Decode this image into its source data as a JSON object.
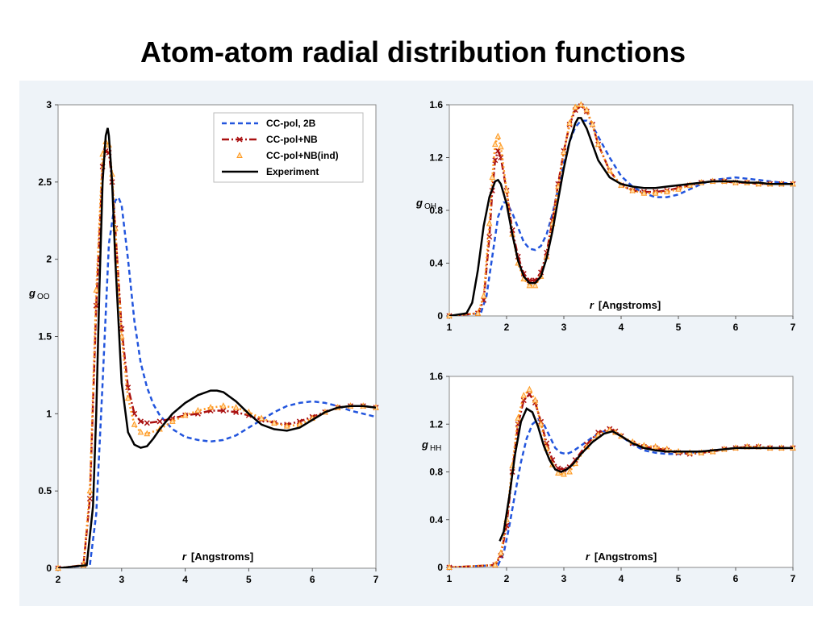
{
  "slide": {
    "title": "Atom-atom radial distribution functions"
  },
  "chart_data": [
    {
      "id": "goo",
      "type": "line",
      "ylabel_main": "g",
      "ylabel_sub": "OO",
      "xlabel_var": "r",
      "xlabel_units": "[Angstroms]",
      "xlim": [
        2,
        7
      ],
      "ylim": [
        0,
        3
      ],
      "xticks": [
        2,
        3,
        4,
        5,
        6,
        7
      ],
      "yticks": [
        0,
        0.5,
        1,
        1.5,
        2,
        2.5,
        3
      ],
      "ytick_labels": [
        "0",
        "0.5",
        "1",
        "1.5",
        "2",
        "2.5",
        "3"
      ],
      "grid": false,
      "legend": {
        "position": "top-right",
        "entries": [
          "CC-pol, 2B",
          "CC-pol+NB",
          "CC-pol+NB(ind)",
          "Experiment"
        ]
      },
      "series": [
        {
          "name": "CC-pol, 2B",
          "color": "#2255dd",
          "style": "dash",
          "x": [
            2.0,
            2.5,
            2.6,
            2.7,
            2.8,
            2.9,
            2.95,
            3.0,
            3.1,
            3.2,
            3.3,
            3.4,
            3.5,
            3.6,
            3.8,
            4.0,
            4.2,
            4.4,
            4.6,
            4.8,
            5.0,
            5.2,
            5.4,
            5.6,
            5.8,
            6.0,
            6.2,
            6.4,
            6.6,
            6.8,
            7.0
          ],
          "y": [
            0,
            0.02,
            0.35,
            1.2,
            2.1,
            2.38,
            2.4,
            2.35,
            2.0,
            1.6,
            1.33,
            1.17,
            1.06,
            0.99,
            0.9,
            0.85,
            0.83,
            0.82,
            0.83,
            0.86,
            0.91,
            0.96,
            1.01,
            1.05,
            1.07,
            1.08,
            1.07,
            1.05,
            1.02,
            1.0,
            0.98
          ]
        },
        {
          "name": "CC-pol+NB",
          "color": "#aa1111",
          "style": "dashdot",
          "marker": "x",
          "x": [
            2.0,
            2.4,
            2.5,
            2.6,
            2.7,
            2.75,
            2.8,
            2.85,
            2.9,
            3.0,
            3.1,
            3.2,
            3.3,
            3.4,
            3.6,
            3.8,
            4.0,
            4.2,
            4.4,
            4.6,
            4.8,
            5.0,
            5.2,
            5.4,
            5.6,
            5.8,
            6.0,
            6.2,
            6.4,
            6.6,
            6.8,
            7.0
          ],
          "y": [
            0,
            0.02,
            0.45,
            1.7,
            2.6,
            2.7,
            2.69,
            2.5,
            2.2,
            1.55,
            1.17,
            1.0,
            0.95,
            0.94,
            0.95,
            0.97,
            0.99,
            1.0,
            1.02,
            1.02,
            1.01,
            0.99,
            0.96,
            0.94,
            0.93,
            0.95,
            0.98,
            1.01,
            1.04,
            1.05,
            1.05,
            1.04
          ]
        },
        {
          "name": "CC-pol+NB(ind)",
          "color": "#ff9922",
          "style": "dot",
          "marker": "triangle",
          "x": [
            2.0,
            2.4,
            2.5,
            2.6,
            2.7,
            2.75,
            2.8,
            2.85,
            2.9,
            3.0,
            3.1,
            3.2,
            3.3,
            3.4,
            3.6,
            3.8,
            4.0,
            4.2,
            4.4,
            4.6,
            4.8,
            5.0,
            5.2,
            5.4,
            5.6,
            5.8,
            6.0,
            6.2,
            6.4,
            6.6,
            6.8,
            7.0
          ],
          "y": [
            0,
            0.02,
            0.5,
            1.8,
            2.68,
            2.76,
            2.74,
            2.55,
            2.2,
            1.5,
            1.1,
            0.93,
            0.88,
            0.87,
            0.9,
            0.95,
            0.99,
            1.02,
            1.04,
            1.05,
            1.04,
            1.01,
            0.97,
            0.94,
            0.92,
            0.93,
            0.97,
            1.01,
            1.04,
            1.05,
            1.05,
            1.04
          ]
        },
        {
          "name": "Experiment",
          "color": "#000000",
          "style": "solid",
          "x": [
            2.0,
            2.45,
            2.55,
            2.6,
            2.65,
            2.7,
            2.75,
            2.78,
            2.8,
            2.85,
            2.9,
            3.0,
            3.1,
            3.2,
            3.3,
            3.4,
            3.5,
            3.6,
            3.8,
            4.0,
            4.2,
            4.4,
            4.5,
            4.6,
            4.8,
            5.0,
            5.2,
            5.4,
            5.6,
            5.8,
            6.0,
            6.2,
            6.4,
            6.6,
            6.8,
            7.0
          ],
          "y": [
            0,
            0.02,
            0.4,
            1.0,
            1.8,
            2.5,
            2.8,
            2.85,
            2.8,
            2.5,
            2.0,
            1.2,
            0.88,
            0.8,
            0.78,
            0.79,
            0.84,
            0.9,
            1.0,
            1.07,
            1.12,
            1.15,
            1.15,
            1.14,
            1.08,
            1.0,
            0.93,
            0.9,
            0.89,
            0.91,
            0.96,
            1.01,
            1.04,
            1.05,
            1.05,
            1.04
          ]
        }
      ]
    },
    {
      "id": "goh",
      "type": "line",
      "ylabel_main": "g",
      "ylabel_sub": "OH",
      "xlabel_var": "r",
      "xlabel_units": "[Angstroms]",
      "xlim": [
        1,
        7
      ],
      "ylim": [
        0,
        1.6
      ],
      "xticks": [
        1,
        2,
        3,
        4,
        5,
        6,
        7
      ],
      "yticks": [
        0,
        0.4,
        0.8,
        1.2,
        1.6
      ],
      "ytick_labels": [
        "0",
        "0.4",
        "0.8",
        "1.2",
        "1.6"
      ],
      "grid": false,
      "series": [
        {
          "name": "CC-pol, 2B",
          "color": "#2255dd",
          "style": "dash",
          "x": [
            1.0,
            1.55,
            1.65,
            1.75,
            1.85,
            1.95,
            2.0,
            2.1,
            2.2,
            2.3,
            2.4,
            2.5,
            2.6,
            2.7,
            2.8,
            2.9,
            3.0,
            3.1,
            3.2,
            3.3,
            3.4,
            3.5,
            3.6,
            3.8,
            4.0,
            4.2,
            4.4,
            4.6,
            4.8,
            5.0,
            5.2,
            5.4,
            5.6,
            5.8,
            6.0,
            6.2,
            6.4,
            6.6,
            6.8,
            7.0
          ],
          "y": [
            0,
            0.02,
            0.15,
            0.45,
            0.75,
            0.86,
            0.86,
            0.78,
            0.67,
            0.56,
            0.51,
            0.5,
            0.53,
            0.62,
            0.77,
            0.96,
            1.16,
            1.32,
            1.43,
            1.48,
            1.48,
            1.44,
            1.36,
            1.2,
            1.06,
            0.98,
            0.93,
            0.9,
            0.9,
            0.92,
            0.96,
            1.0,
            1.03,
            1.04,
            1.05,
            1.04,
            1.03,
            1.02,
            1.01,
            1.0
          ]
        },
        {
          "name": "CC-pol+NB",
          "color": "#aa1111",
          "style": "dashdot",
          "marker": "x",
          "x": [
            1.0,
            1.5,
            1.6,
            1.7,
            1.75,
            1.8,
            1.85,
            1.9,
            2.0,
            2.1,
            2.2,
            2.3,
            2.4,
            2.5,
            2.6,
            2.7,
            2.8,
            2.9,
            3.0,
            3.1,
            3.2,
            3.3,
            3.4,
            3.5,
            3.6,
            3.8,
            4.0,
            4.2,
            4.4,
            4.6,
            4.8,
            5.0,
            5.2,
            5.4,
            5.6,
            5.8,
            6.0,
            6.2,
            6.4,
            6.6,
            6.8,
            7.0
          ],
          "y": [
            0,
            0.02,
            0.12,
            0.6,
            0.95,
            1.18,
            1.25,
            1.2,
            0.95,
            0.65,
            0.45,
            0.32,
            0.27,
            0.27,
            0.33,
            0.48,
            0.72,
            1.0,
            1.25,
            1.45,
            1.56,
            1.59,
            1.55,
            1.45,
            1.3,
            1.1,
            0.99,
            0.95,
            0.94,
            0.94,
            0.95,
            0.97,
            0.99,
            1.01,
            1.02,
            1.02,
            1.01,
            1.01,
            1.0,
            1.0,
            1.0,
            1.0
          ]
        },
        {
          "name": "CC-pol+NB(ind)",
          "color": "#ff9922",
          "style": "dot",
          "marker": "triangle",
          "x": [
            1.0,
            1.5,
            1.6,
            1.7,
            1.75,
            1.8,
            1.85,
            1.9,
            2.0,
            2.1,
            2.2,
            2.3,
            2.4,
            2.5,
            2.6,
            2.7,
            2.8,
            2.9,
            3.0,
            3.1,
            3.2,
            3.3,
            3.4,
            3.5,
            3.6,
            3.8,
            4.0,
            4.2,
            4.4,
            4.6,
            4.8,
            5.0,
            5.2,
            5.4,
            5.6,
            5.8,
            6.0,
            6.2,
            6.4,
            6.6,
            6.8,
            7.0
          ],
          "y": [
            0,
            0.02,
            0.15,
            0.7,
            1.05,
            1.3,
            1.36,
            1.28,
            0.95,
            0.62,
            0.4,
            0.28,
            0.23,
            0.23,
            0.3,
            0.45,
            0.7,
            0.98,
            1.24,
            1.46,
            1.58,
            1.6,
            1.56,
            1.45,
            1.3,
            1.1,
            0.99,
            0.95,
            0.93,
            0.93,
            0.94,
            0.96,
            0.99,
            1.01,
            1.02,
            1.02,
            1.01,
            1.01,
            1.0,
            1.0,
            1.0,
            1.0
          ]
        },
        {
          "name": "Experiment",
          "color": "#000000",
          "style": "solid",
          "x": [
            1.0,
            1.3,
            1.4,
            1.5,
            1.6,
            1.7,
            1.8,
            1.85,
            1.9,
            2.0,
            2.1,
            2.2,
            2.3,
            2.4,
            2.5,
            2.6,
            2.7,
            2.8,
            2.9,
            3.0,
            3.1,
            3.2,
            3.25,
            3.3,
            3.4,
            3.5,
            3.6,
            3.8,
            4.0,
            4.2,
            4.4,
            4.6,
            4.8,
            5.0,
            5.2,
            5.4,
            5.6,
            5.8,
            6.0,
            6.2,
            6.4,
            6.6,
            6.8,
            7.0
          ],
          "y": [
            0,
            0.02,
            0.1,
            0.35,
            0.68,
            0.9,
            1.02,
            1.03,
            1.0,
            0.85,
            0.62,
            0.42,
            0.3,
            0.25,
            0.25,
            0.3,
            0.44,
            0.64,
            0.88,
            1.12,
            1.32,
            1.46,
            1.5,
            1.5,
            1.42,
            1.3,
            1.18,
            1.05,
            1.0,
            0.98,
            0.97,
            0.97,
            0.98,
            0.99,
            1.0,
            1.01,
            1.02,
            1.02,
            1.02,
            1.01,
            1.01,
            1.0,
            1.0,
            1.0
          ]
        }
      ]
    },
    {
      "id": "ghh",
      "type": "line",
      "ylabel_main": "g",
      "ylabel_sub": "HH",
      "xlabel_var": "r",
      "xlabel_units": "[Angstroms]",
      "xlim": [
        1,
        7
      ],
      "ylim": [
        0,
        1.6
      ],
      "xticks": [
        1,
        2,
        3,
        4,
        5,
        6,
        7
      ],
      "yticks": [
        0,
        0.4,
        0.8,
        1.2,
        1.6
      ],
      "ytick_labels": [
        "0",
        "0.4",
        "0.8",
        "1.2",
        "1.6"
      ],
      "grid": false,
      "series": [
        {
          "name": "CC-pol, 2B",
          "color": "#2255dd",
          "style": "dash",
          "x": [
            1.0,
            1.85,
            1.95,
            2.05,
            2.15,
            2.25,
            2.35,
            2.45,
            2.55,
            2.65,
            2.75,
            2.85,
            2.95,
            3.05,
            3.15,
            3.3,
            3.5,
            3.7,
            3.85,
            4.0,
            4.2,
            4.4,
            4.6,
            4.8,
            5.0,
            5.2,
            5.4,
            5.6,
            5.8,
            6.0,
            6.2,
            6.4,
            6.6,
            6.8,
            7.0
          ],
          "y": [
            0,
            0.02,
            0.12,
            0.35,
            0.62,
            0.88,
            1.08,
            1.2,
            1.24,
            1.2,
            1.1,
            1.0,
            0.96,
            0.95,
            0.97,
            1.02,
            1.09,
            1.14,
            1.14,
            1.1,
            1.03,
            0.98,
            0.96,
            0.95,
            0.95,
            0.96,
            0.97,
            0.98,
            0.99,
            1.0,
            1.0,
            1.0,
            1.0,
            1.0,
            1.0
          ]
        },
        {
          "name": "CC-pol+NB",
          "color": "#aa1111",
          "style": "dashdot",
          "marker": "x",
          "x": [
            1.0,
            1.8,
            1.9,
            2.0,
            2.1,
            2.2,
            2.3,
            2.4,
            2.5,
            2.6,
            2.7,
            2.8,
            2.9,
            3.0,
            3.1,
            3.2,
            3.4,
            3.6,
            3.8,
            3.9,
            4.0,
            4.2,
            4.4,
            4.6,
            4.8,
            5.0,
            5.2,
            5.4,
            5.6,
            5.8,
            6.0,
            6.2,
            6.4,
            6.6,
            6.8,
            7.0
          ],
          "y": [
            0,
            0.02,
            0.1,
            0.35,
            0.8,
            1.2,
            1.4,
            1.45,
            1.38,
            1.22,
            1.04,
            0.9,
            0.83,
            0.82,
            0.84,
            0.9,
            1.03,
            1.13,
            1.16,
            1.14,
            1.1,
            1.04,
            1.01,
            1.0,
            0.98,
            0.96,
            0.95,
            0.96,
            0.97,
            0.99,
            1.0,
            1.01,
            1.01,
            1.0,
            1.0,
            1.0
          ]
        },
        {
          "name": "CC-pol+NB(ind)",
          "color": "#ff9922",
          "style": "dot",
          "marker": "triangle",
          "x": [
            1.0,
            1.8,
            1.9,
            2.0,
            2.1,
            2.2,
            2.3,
            2.4,
            2.5,
            2.6,
            2.7,
            2.8,
            2.9,
            3.0,
            3.1,
            3.2,
            3.4,
            3.6,
            3.8,
            3.9,
            4.0,
            4.2,
            4.4,
            4.6,
            4.8,
            5.0,
            5.2,
            5.4,
            5.6,
            5.8,
            6.0,
            6.2,
            6.4,
            6.6,
            6.8,
            7.0
          ],
          "y": [
            0,
            0.02,
            0.12,
            0.4,
            0.85,
            1.25,
            1.44,
            1.49,
            1.4,
            1.2,
            1.0,
            0.86,
            0.79,
            0.78,
            0.8,
            0.87,
            1.01,
            1.11,
            1.15,
            1.13,
            1.1,
            1.05,
            1.02,
            1.01,
            0.99,
            0.97,
            0.96,
            0.96,
            0.97,
            0.99,
            1.0,
            1.01,
            1.01,
            1.0,
            1.0,
            1.0
          ]
        },
        {
          "name": "Experiment",
          "color": "#000000",
          "style": "solid",
          "x": [
            1.88,
            1.95,
            2.05,
            2.15,
            2.25,
            2.35,
            2.45,
            2.55,
            2.65,
            2.75,
            2.85,
            2.95,
            3.05,
            3.15,
            3.3,
            3.5,
            3.7,
            3.85,
            4.0,
            4.2,
            4.4,
            4.6,
            4.8,
            5.0,
            5.2,
            5.4,
            5.6,
            5.8,
            6.0,
            6.2,
            6.4,
            6.6,
            6.8,
            7.0
          ],
          "y": [
            0.22,
            0.3,
            0.6,
            0.95,
            1.22,
            1.33,
            1.3,
            1.18,
            1.02,
            0.9,
            0.82,
            0.8,
            0.82,
            0.86,
            0.95,
            1.05,
            1.12,
            1.14,
            1.1,
            1.04,
            1.0,
            0.98,
            0.97,
            0.97,
            0.97,
            0.97,
            0.98,
            0.99,
            1.0,
            1.0,
            1.0,
            1.0,
            1.0,
            1.0
          ]
        }
      ]
    }
  ]
}
